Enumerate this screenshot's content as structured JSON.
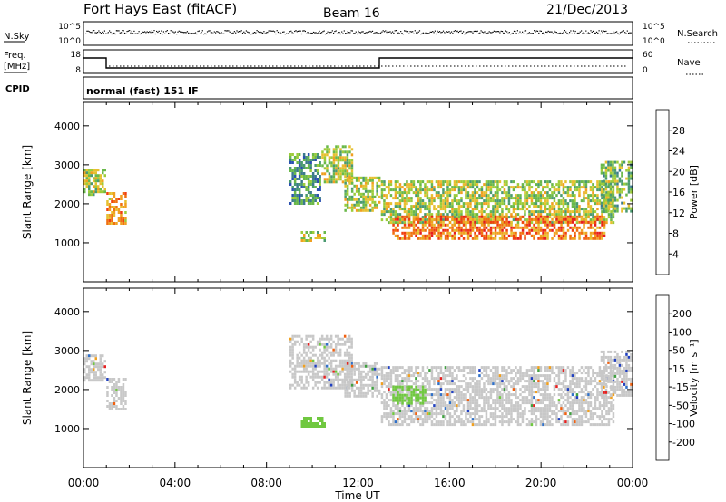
{
  "header": {
    "station": "Fort Hays East (fitACF)",
    "beam": "Beam 16",
    "date": "21/Dec/2013"
  },
  "status_panels": {
    "nsky_label": "N.Sky",
    "nsearch_label": "N.Search",
    "freq_label_line1": "Freq.",
    "freq_label_line2": "[MHz]",
    "nave_label": "Nave",
    "cpid_label": "CPID",
    "cpid_value": "normal (fast) 151 IF",
    "nsky_ticks": [
      "10^5",
      "10^0"
    ],
    "nsearch_ticks": [
      "10^5",
      "10^0"
    ],
    "freq_ticks": [
      "18",
      "8"
    ],
    "nave_ticks": [
      "60",
      "0"
    ]
  },
  "chart_data": [
    {
      "type": "heatmap",
      "panel": "power",
      "ylabel": "Slant Range [km]",
      "xlabel": "",
      "ylim": [
        0,
        4600
      ],
      "yticks": [
        "4000",
        "3000",
        "2000",
        "1000"
      ],
      "xlim_hours": [
        0,
        24
      ],
      "colorbar_label": "Power [dB]",
      "colorbar_ticks": [
        "28",
        "24",
        "20",
        "16",
        "12",
        "8",
        "4"
      ],
      "colorbar_colors": [
        "#1a1ae6",
        "#2a50b0",
        "#3c7a8c",
        "#4a9a70",
        "#6ab84a",
        "#9ccc3a",
        "#e6c030",
        "#f0a020",
        "#f07010",
        "#f04010",
        "#e61e1e"
      ],
      "echo_regions": [
        {
          "x0": 0.0,
          "x1": 1.0,
          "r0": 2200,
          "r1": 2900,
          "v": 14
        },
        {
          "x0": 1.0,
          "x1": 1.9,
          "r0": 1450,
          "r1": 2300,
          "v": 20
        },
        {
          "x0": 9.0,
          "x1": 10.4,
          "r0": 2000,
          "r1": 3300,
          "v": 10
        },
        {
          "x0": 10.4,
          "x1": 11.8,
          "r0": 2500,
          "r1": 3500,
          "v": 14
        },
        {
          "x0": 9.5,
          "x1": 10.6,
          "r0": 1000,
          "r1": 1300,
          "v": 14
        },
        {
          "x0": 11.4,
          "x1": 13.0,
          "r0": 1800,
          "r1": 2700,
          "v": 14
        },
        {
          "x0": 13.0,
          "x1": 23.2,
          "r0": 1500,
          "r1": 2600,
          "v": 14
        },
        {
          "x0": 13.5,
          "x1": 22.8,
          "r0": 1050,
          "r1": 1700,
          "v": 24
        },
        {
          "x0": 22.6,
          "x1": 24.0,
          "r0": 1800,
          "r1": 3100,
          "v": 12
        }
      ]
    },
    {
      "type": "heatmap",
      "panel": "velocity",
      "ylabel": "Slant Range [km]",
      "xlabel": "Time UT",
      "ylim": [
        0,
        4600
      ],
      "yticks": [
        "4000",
        "3000",
        "2000",
        "1000"
      ],
      "xticks": [
        "00:00",
        "04:00",
        "08:00",
        "12:00",
        "16:00",
        "20:00",
        "00:00"
      ],
      "xlim_hours": [
        0,
        24
      ],
      "colorbar_label": "Velocity [m s⁻¹]",
      "colorbar_ticks": [
        "200",
        "100",
        "50",
        "15",
        "-15",
        "-50",
        "-100",
        "-200"
      ],
      "colorbar_colors": [
        "#2040c0",
        "#3070c8",
        "#40a040",
        "#70c840",
        "#c8c8c8",
        "#c8c8c8",
        "#f0a020",
        "#f06010",
        "#e62020"
      ],
      "echo_regions": [
        {
          "x0": 0.0,
          "x1": 1.0,
          "r0": 2200,
          "r1": 2900,
          "v": 0
        },
        {
          "x0": 1.0,
          "x1": 1.9,
          "r0": 1450,
          "r1": 2300,
          "v": 0
        },
        {
          "x0": 9.0,
          "x1": 11.8,
          "r0": 2000,
          "r1": 3400,
          "v": 0
        },
        {
          "x0": 9.5,
          "x1": 10.6,
          "r0": 1000,
          "r1": 1300,
          "v": 40
        },
        {
          "x0": 11.4,
          "x1": 13.0,
          "r0": 1800,
          "r1": 2700,
          "v": 0
        },
        {
          "x0": 13.0,
          "x1": 23.2,
          "r0": 1100,
          "r1": 2600,
          "v": 0
        },
        {
          "x0": 13.5,
          "x1": 15.0,
          "r0": 1600,
          "r1": 2100,
          "v": 40
        },
        {
          "x0": 22.6,
          "x1": 24.0,
          "r0": 1800,
          "r1": 3000,
          "v": 0
        }
      ]
    }
  ]
}
